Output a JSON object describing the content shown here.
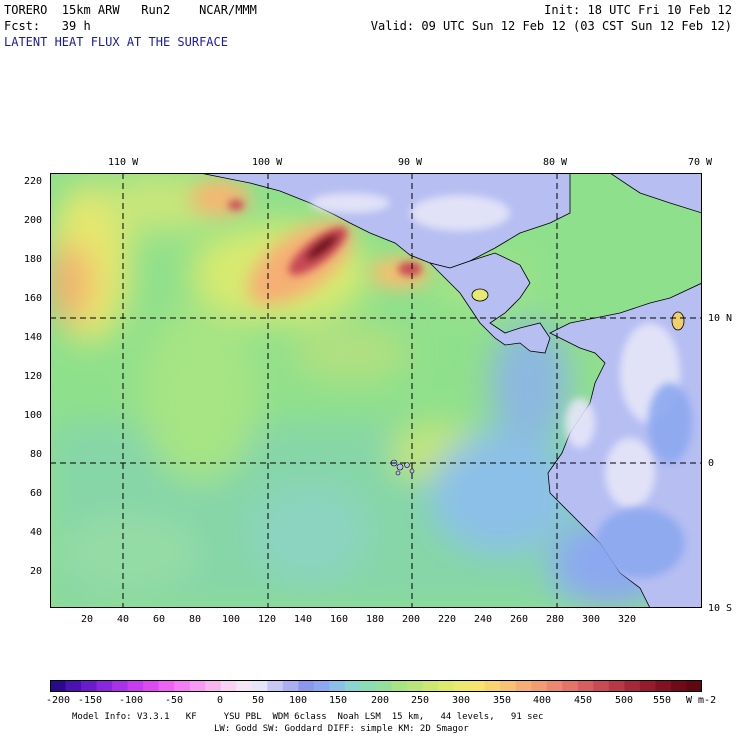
{
  "header": {
    "line1_left": "TORERO  15km ARW   Run2    NCAR/MMM",
    "line1_right": "Init: 18 UTC Fri 10 Feb 12",
    "line2_left": "Fcst:   39 h",
    "line2_right": "Valid: 09 UTC Sun 12 Feb 12 (03 CST Sun 12 Feb 12)",
    "field_title": "LATENT HEAT FLUX AT THE SURFACE"
  },
  "map": {
    "lon_labels": [
      "110 W",
      "100 W",
      "90 W",
      "80 W",
      "70 W"
    ],
    "lat_labels": [
      "10 N",
      "0",
      "10 S"
    ],
    "x_ticks": [
      "20",
      "40",
      "60",
      "80",
      "100",
      "120",
      "140",
      "160",
      "180",
      "200",
      "220",
      "240",
      "260",
      "280",
      "300",
      "320"
    ],
    "y_ticks": [
      "220",
      "200",
      "180",
      "160",
      "140",
      "120",
      "100",
      "80",
      "60",
      "40",
      "20"
    ]
  },
  "colorbar": {
    "labels": [
      "-200",
      "-150",
      "-100",
      "-50",
      "0",
      "50",
      "100",
      "150",
      "200",
      "250",
      "300",
      "350",
      "400",
      "450",
      "500",
      "550"
    ],
    "units": "W m-2",
    "colors": [
      "#2a0a8c",
      "#4a12b0",
      "#6a1ccc",
      "#8a26e0",
      "#a832ea",
      "#c63cf0",
      "#de4af2",
      "#ee62f4",
      "#f47cf4",
      "#f69af2",
      "#f8b6f0",
      "#f8d2f2",
      "#f4e6f4",
      "#e6e6f8",
      "#c8c8f4",
      "#aab0f0",
      "#8c96ec",
      "#8ca8f0",
      "#8cc0e8",
      "#8cd4d0",
      "#8cdcb4",
      "#94e09a",
      "#a6e484",
      "#b8e67a",
      "#cae872",
      "#dcea6e",
      "#ecea6c",
      "#f6e46c",
      "#f8d470",
      "#f8c274",
      "#f6ae74",
      "#f29c74",
      "#ec8870",
      "#e2746a",
      "#d65e60",
      "#c84a54",
      "#b83846",
      "#a62838",
      "#941c2c",
      "#821222",
      "#700a18",
      "#5e0810"
    ]
  },
  "footer": {
    "line1": "Model Info: V3.3.1   KF     YSU PBL  WDM 6class  Noah LSM  15 km,   44 levels,   91 sec",
    "line2": "LW: Godd SW: Goddard DIFF: simple KM: 2D Smagor"
  }
}
